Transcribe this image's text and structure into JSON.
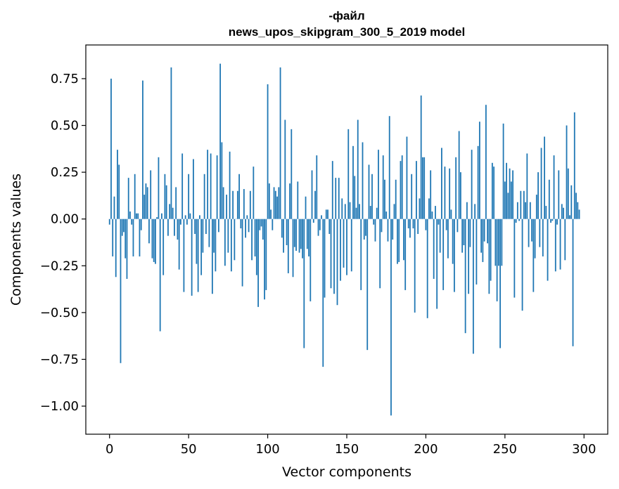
{
  "chart_data": {
    "type": "bar",
    "title_line1": "-файл",
    "title_line2": "news_upos_skipgram_300_5_2019 model",
    "xlabel": "Vector components",
    "ylabel": "Components values",
    "xlim": [
      -15,
      315
    ],
    "ylim": [
      -1.15,
      0.93
    ],
    "xticks": [
      0,
      50,
      100,
      150,
      200,
      250,
      300
    ],
    "xtick_labels": [
      "0",
      "50",
      "100",
      "150",
      "200",
      "250",
      "300"
    ],
    "yticks": [
      0.75,
      0.5,
      0.25,
      0.0,
      -0.25,
      -0.5,
      -0.75,
      -1.0
    ],
    "ytick_labels": [
      "0.75",
      "0.50",
      "0.25",
      "0.00",
      "−0.25",
      "−0.50",
      "−0.75",
      "−1.00"
    ],
    "bar_color": "#1f77b4",
    "series": [
      {
        "name": "components",
        "values": [
          -0.03,
          0.75,
          -0.2,
          0.12,
          -0.31,
          0.37,
          0.29,
          -0.77,
          -0.09,
          -0.07,
          -0.21,
          -0.32,
          0.22,
          0.04,
          -0.03,
          -0.2,
          0.24,
          0.03,
          0.03,
          -0.2,
          -0.06,
          0.74,
          0.13,
          0.19,
          0.17,
          -0.13,
          0.26,
          -0.21,
          -0.23,
          -0.24,
          0.01,
          0.33,
          -0.6,
          0.03,
          -0.3,
          0.24,
          0.18,
          -0.09,
          0.08,
          0.81,
          0.06,
          -0.09,
          0.17,
          -0.11,
          -0.27,
          -0.03,
          0.35,
          -0.39,
          0.02,
          -0.03,
          0.24,
          0.03,
          -0.41,
          0.32,
          -0.08,
          -0.24,
          -0.39,
          0.02,
          -0.3,
          -0.18,
          0.24,
          -0.08,
          0.37,
          -0.15,
          0.35,
          -0.4,
          -0.18,
          -0.28,
          0.34,
          -0.07,
          0.83,
          0.41,
          0.17,
          -0.25,
          0.13,
          -0.18,
          0.36,
          -0.28,
          0.15,
          -0.22,
          0.0,
          0.15,
          0.24,
          -0.05,
          -0.36,
          0.16,
          -0.1,
          0.02,
          -0.07,
          0.15,
          -0.22,
          0.28,
          -0.2,
          -0.3,
          -0.47,
          -0.06,
          -0.04,
          -0.11,
          -0.43,
          -0.38,
          0.72,
          0.19,
          0.05,
          -0.06,
          0.17,
          0.15,
          0.12,
          0.17,
          0.81,
          -0.1,
          -0.18,
          0.53,
          -0.14,
          -0.29,
          0.19,
          0.48,
          -0.31,
          -0.15,
          -0.17,
          0.2,
          -0.18,
          -0.16,
          -0.21,
          -0.69,
          0.12,
          -0.16,
          -0.2,
          -0.44,
          0.26,
          -0.02,
          0.15,
          0.34,
          -0.09,
          -0.06,
          0.02,
          -0.79,
          -0.42,
          0.05,
          0.05,
          -0.08,
          -0.37,
          0.31,
          -0.4,
          0.22,
          -0.46,
          0.22,
          -0.33,
          0.11,
          -0.26,
          0.08,
          -0.3,
          0.48,
          0.09,
          -0.28,
          0.39,
          0.23,
          0.06,
          0.53,
          0.08,
          -0.38,
          0.41,
          -0.11,
          -0.09,
          -0.7,
          0.29,
          0.07,
          0.24,
          -0.03,
          -0.12,
          0.06,
          0.37,
          -0.37,
          -0.07,
          0.34,
          0.21,
          0.04,
          -0.12,
          0.55,
          -1.05,
          -0.11,
          0.08,
          0.21,
          -0.24,
          -0.23,
          0.31,
          0.34,
          -0.22,
          -0.38,
          0.44,
          -0.05,
          -0.1,
          0.24,
          -0.05,
          -0.5,
          0.31,
          -0.08,
          0.11,
          0.66,
          0.33,
          0.33,
          -0.06,
          -0.53,
          0.11,
          0.26,
          0.04,
          -0.32,
          0.07,
          -0.48,
          -0.03,
          -0.18,
          0.38,
          -0.38,
          0.28,
          -0.06,
          -0.21,
          0.27,
          0.05,
          -0.24,
          -0.39,
          0.33,
          -0.07,
          0.47,
          0.25,
          -0.18,
          -0.14,
          -0.61,
          0.09,
          -0.4,
          -0.15,
          0.37,
          -0.72,
          0.08,
          -0.35,
          0.39,
          0.52,
          -0.18,
          -0.23,
          -0.12,
          0.61,
          -0.13,
          -0.4,
          -0.33,
          0.3,
          0.28,
          -0.25,
          -0.44,
          -0.25,
          -0.69,
          -0.25,
          0.51,
          0.2,
          0.3,
          0.14,
          0.27,
          0.2,
          0.26,
          -0.42,
          -0.02,
          0.09,
          -0.01,
          0.15,
          -0.49,
          0.15,
          0.09,
          0.35,
          -0.15,
          0.09,
          -0.12,
          -0.39,
          -0.21,
          0.13,
          0.25,
          -0.15,
          0.38,
          -0.2,
          0.44,
          0.07,
          -0.33,
          0.21,
          -0.02,
          -0.01,
          0.34,
          -0.28,
          -0.03,
          0.26,
          -0.27,
          0.08,
          0.06,
          -0.22,
          0.5,
          0.27,
          0.02,
          0.18,
          -0.68,
          0.57,
          0.14,
          0.09,
          0.05
        ]
      }
    ]
  }
}
